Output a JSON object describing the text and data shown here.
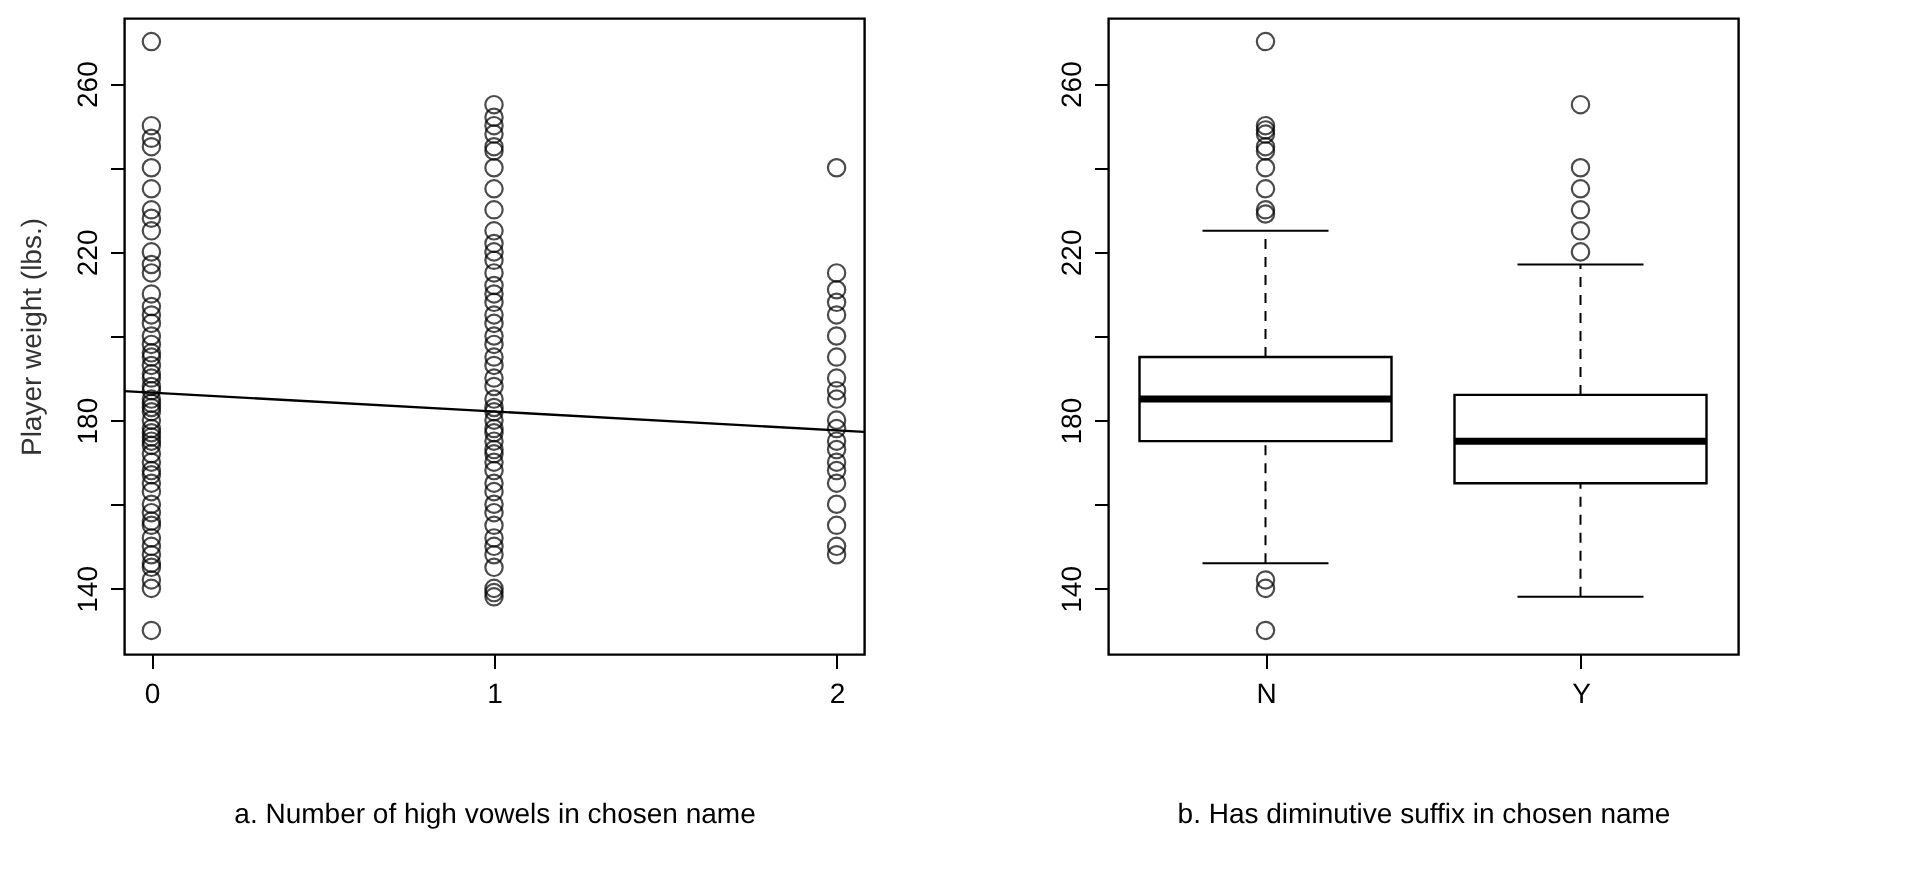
{
  "chart_data": [
    {
      "type": "scatter",
      "xlabel": "a. Number of high vowels in chosen name",
      "ylabel": "Player weight (lbs.)",
      "xlim": [
        -0.08,
        2.08
      ],
      "xticks": [
        0,
        1,
        2
      ],
      "ylim": [
        124.4,
        275.6
      ],
      "yticks": [
        140,
        {
          "value": 160,
          "label": null
        },
        180,
        {
          "value": 200,
          "label": null
        },
        220,
        {
          "value": 240,
          "label": null
        },
        260
      ],
      "grid": false,
      "series": [
        {
          "color": "#000000",
          "marker": "circle",
          "x": [
            0,
            0,
            0,
            0,
            0,
            0,
            0,
            0,
            0,
            0,
            0,
            0,
            0,
            0,
            0,
            0,
            0,
            0,
            0,
            0,
            0,
            0,
            0,
            0,
            0,
            0,
            0,
            0,
            0,
            0,
            0,
            0,
            0,
            0,
            0,
            0,
            0,
            0,
            0,
            0,
            0,
            0,
            0,
            0,
            0,
            0,
            0,
            0,
            0,
            0,
            0,
            0,
            0,
            1,
            1,
            1,
            1,
            1,
            1,
            1,
            1,
            1,
            1,
            1,
            1,
            1,
            1,
            1,
            1,
            1,
            1,
            1,
            1,
            1,
            1,
            1,
            1,
            1,
            1,
            1,
            1,
            1,
            1,
            1,
            1,
            1,
            1,
            1,
            1,
            1,
            1,
            1,
            1,
            1,
            1,
            1,
            1,
            1,
            1,
            1,
            1,
            2,
            2,
            2,
            2,
            2,
            2,
            2,
            2,
            2,
            2,
            2,
            2,
            2,
            2,
            2,
            2,
            2,
            2,
            2,
            2,
            2
          ],
          "values": [
            270,
            250,
            247,
            245,
            240,
            235,
            230,
            228,
            225,
            220,
            217,
            215,
            210,
            207,
            205,
            203,
            200,
            198,
            196,
            195,
            193,
            191,
            190,
            188,
            187,
            185,
            184,
            183,
            182,
            180,
            178,
            177,
            176,
            175,
            174,
            172,
            170,
            168,
            167,
            165,
            163,
            160,
            158,
            156,
            155,
            152,
            150,
            148,
            146,
            145,
            142,
            140,
            130,
            255,
            252,
            250,
            248,
            245,
            244,
            240,
            235,
            230,
            225,
            222,
            220,
            218,
            215,
            212,
            210,
            208,
            205,
            203,
            200,
            198,
            195,
            193,
            190,
            188,
            185,
            183,
            182,
            180,
            178,
            177,
            175,
            173,
            172,
            170,
            168,
            165,
            163,
            160,
            158,
            155,
            152,
            150,
            148,
            145,
            140,
            139,
            138,
            240,
            215,
            211,
            208,
            205,
            200,
            195,
            190,
            187,
            185,
            180,
            178,
            175,
            173,
            170,
            168,
            165,
            160,
            155,
            150,
            148
          ]
        },
        {
          "type": "line",
          "marker": "none",
          "color": "#000000",
          "x": [
            -0.08,
            2.08
          ],
          "values": [
            186.9,
            177.2
          ]
        }
      ]
    },
    {
      "type": "box",
      "xlabel": "b. Has diminutive suffix in chosen name",
      "categories": [
        "N",
        "Y"
      ],
      "ylim": [
        124.4,
        275.6
      ],
      "yticks": [
        140,
        {
          "value": 160,
          "label": null
        },
        180,
        {
          "value": 200,
          "label": null
        },
        220,
        {
          "value": 240,
          "label": null
        },
        260
      ],
      "grid": false,
      "color": "#000000",
      "boxes": [
        {
          "low": 146,
          "q1": 175,
          "median": 185,
          "q3": 195,
          "high": 225,
          "outliers": [
            270,
            250,
            249,
            248,
            245,
            244,
            240,
            235,
            230,
            229,
            142,
            140,
            130
          ]
        },
        {
          "low": 138,
          "q1": 165,
          "median": 175,
          "q3": 186,
          "high": 217,
          "outliers": [
            255,
            240,
            235,
            230,
            225,
            220
          ]
        }
      ]
    }
  ]
}
